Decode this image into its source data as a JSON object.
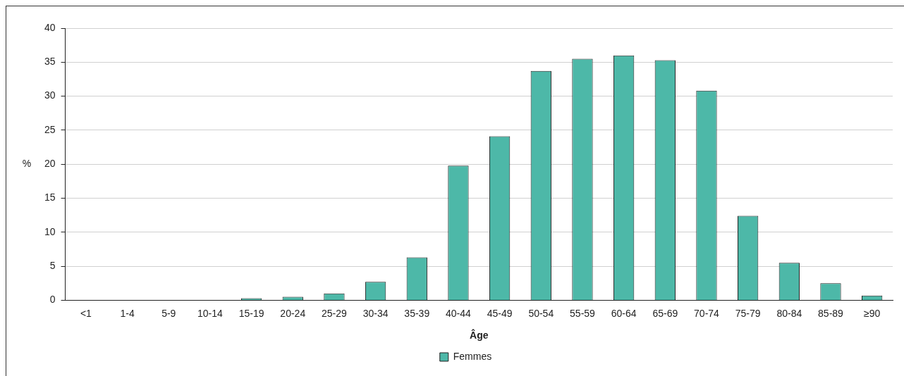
{
  "chart_data": {
    "type": "bar",
    "xlabel": "Âge",
    "ylabel": "%",
    "categories": [
      "<1",
      "1-4",
      "5-9",
      "10-14",
      "15-19",
      "20-24",
      "25-29",
      "30-34",
      "35-39",
      "40-44",
      "45-49",
      "50-54",
      "55-59",
      "60-64",
      "65-69",
      "70-74",
      "75-79",
      "80-84",
      "85-89",
      "≥90"
    ],
    "series": [
      {
        "name": "Femmes",
        "color": "#4db8a8",
        "values": [
          0,
          0,
          0,
          0,
          0.3,
          0.5,
          1.0,
          2.7,
          6.3,
          19.8,
          24.1,
          33.7,
          35.5,
          36.0,
          35.3,
          30.8,
          12.4,
          5.5,
          2.5,
          0.7
        ]
      }
    ],
    "ylim": [
      0,
      40
    ],
    "yticks": [
      0,
      5,
      10,
      15,
      20,
      25,
      30,
      35,
      40
    ],
    "grid": "y",
    "legend": "bottom"
  }
}
